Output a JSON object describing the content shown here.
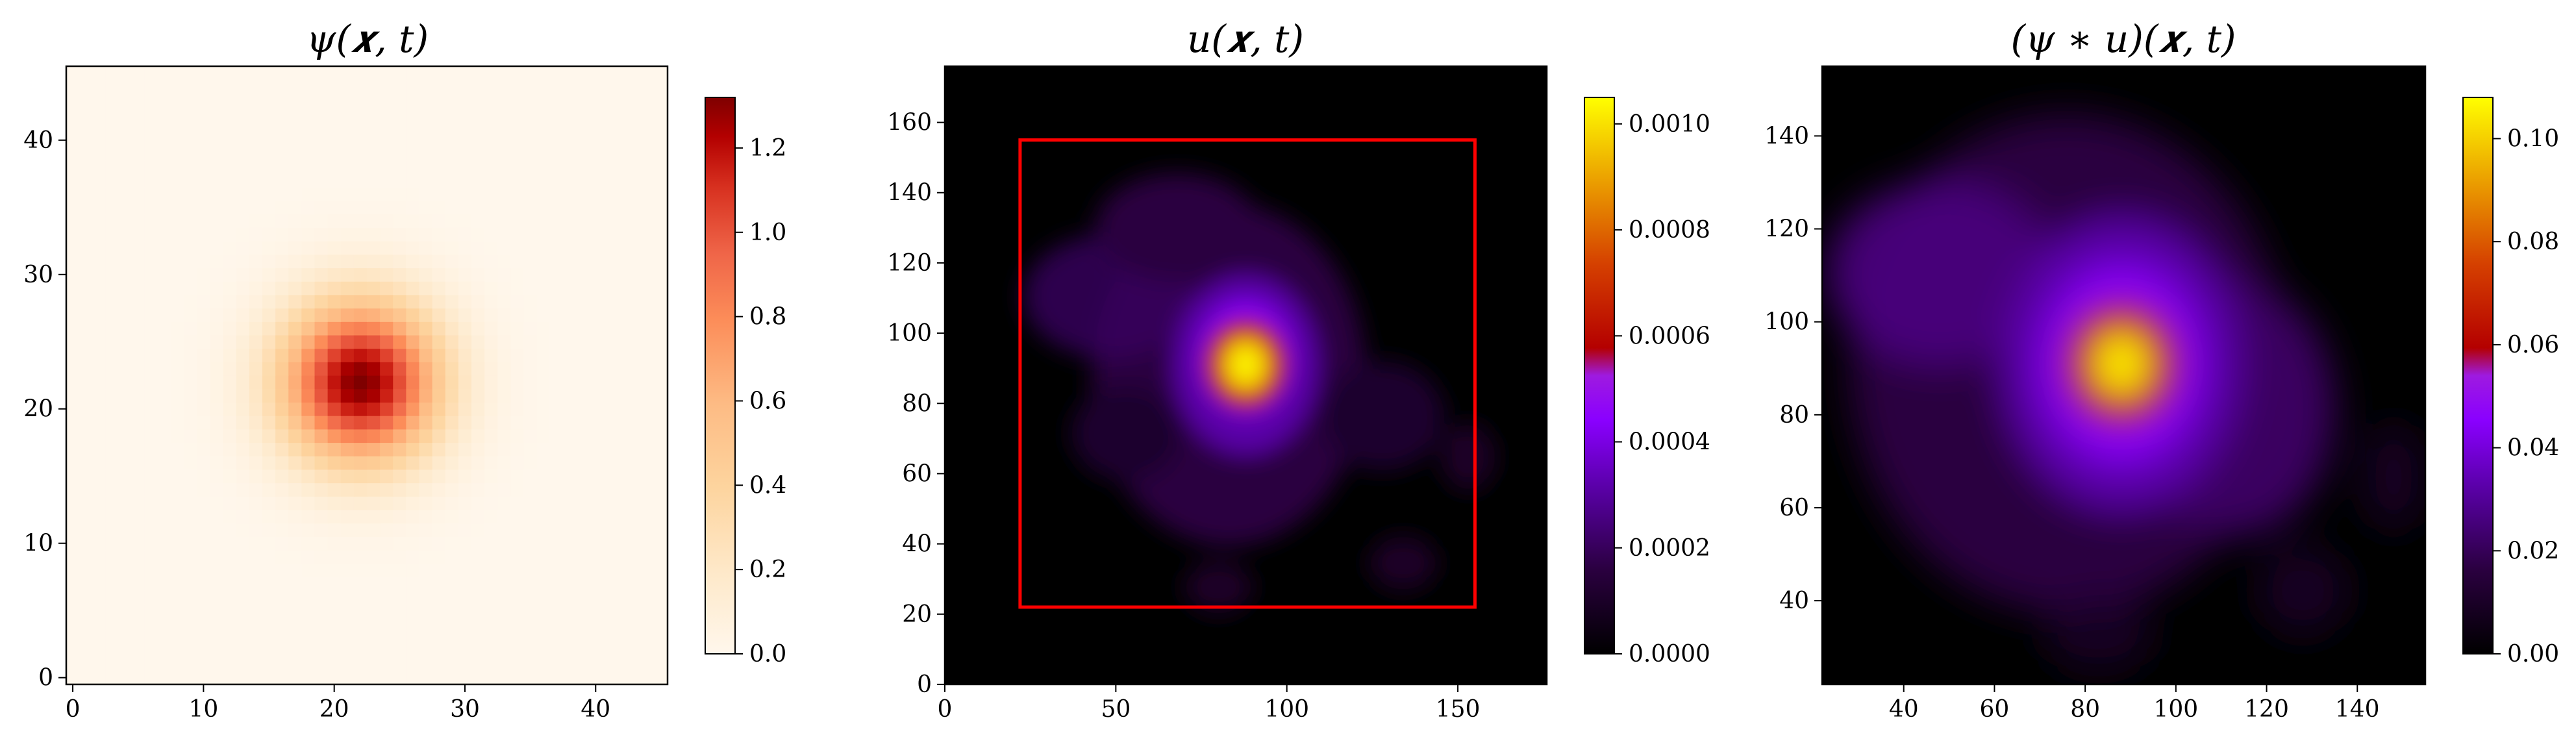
{
  "chart_data": [
    {
      "type": "heatmap",
      "title": "ψ(𝒙, t)",
      "xlim": [
        -0.5,
        45.5
      ],
      "ylim": [
        -0.5,
        45.5
      ],
      "xticks": [
        0,
        10,
        20,
        30,
        40
      ],
      "yticks": [
        0,
        10,
        20,
        30,
        40
      ],
      "colormap": "OrRd",
      "color_range": [
        0.0,
        1.32
      ],
      "colorbar_ticks": [
        "0.0",
        "0.2",
        "0.4",
        "0.6",
        "0.8",
        "1.0",
        "1.2"
      ],
      "peak": {
        "x": 22,
        "y": 22,
        "value": 1.32
      },
      "sigma": 4.2,
      "grid": false
    },
    {
      "type": "heatmap",
      "title": "u(𝒙, t)",
      "xlim": [
        0,
        176
      ],
      "ylim": [
        0,
        176
      ],
      "xticks": [
        0,
        50,
        100,
        150
      ],
      "yticks": [
        0,
        20,
        40,
        60,
        80,
        100,
        120,
        140,
        160
      ],
      "colormap": "gnuplot",
      "color_range": [
        0.0,
        0.00105
      ],
      "colorbar_ticks": [
        "0.0000",
        "0.0002",
        "0.0004",
        "0.0006",
        "0.0008",
        "0.0010"
      ],
      "peak": {
        "x": 88,
        "y": 91,
        "value": 0.00105
      },
      "highlight_box": {
        "x0": 22,
        "x1": 155,
        "y0": 22,
        "y1": 155,
        "color": "#ff0000"
      },
      "grid": false
    },
    {
      "type": "heatmap",
      "title": "(ψ ∗ u)(𝒙, t)",
      "xlim": [
        22,
        155
      ],
      "ylim": [
        22,
        155
      ],
      "xticks": [
        40,
        60,
        80,
        100,
        120,
        140
      ],
      "yticks": [
        40,
        60,
        80,
        100,
        120,
        140
      ],
      "colormap": "gnuplot",
      "color_range": [
        0.0,
        0.108
      ],
      "colorbar_ticks": [
        "0.00",
        "0.02",
        "0.04",
        "0.06",
        "0.08",
        "0.10"
      ],
      "peak": {
        "x": 88,
        "y": 91,
        "value": 0.108
      },
      "grid": false
    }
  ]
}
